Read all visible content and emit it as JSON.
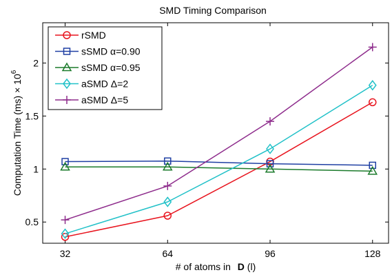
{
  "chart_data": {
    "type": "line",
    "title": "SMD Timing Comparison",
    "xlabel_parts": [
      "# of atoms in ",
      "D",
      " (l)"
    ],
    "ylabel": "Computation Time (ms) × 10",
    "ylabel_exp": "6",
    "x": [
      32,
      64,
      96,
      128
    ],
    "x_ticks": [
      "32",
      "64",
      "96",
      "128"
    ],
    "y_ticks": [
      "0.5",
      "1",
      "1.5",
      "2"
    ],
    "y_tick_values": [
      0.5,
      1,
      1.5,
      2
    ],
    "xlim": [
      25,
      133
    ],
    "ylim": [
      0.3,
      2.38
    ],
    "legend_position": "top-left",
    "series": [
      {
        "name": "rSMD",
        "color": "#e8141e",
        "marker": "circle",
        "values": [
          0.36,
          0.56,
          1.07,
          1.63
        ]
      },
      {
        "name": "sSMD α=0.90",
        "color": "#1f3fa3",
        "marker": "square",
        "values": [
          1.07,
          1.075,
          1.05,
          1.035
        ]
      },
      {
        "name": "sSMD α=0.95",
        "color": "#1a7a2a",
        "marker": "triangle",
        "values": [
          1.02,
          1.02,
          1.0,
          0.98
        ]
      },
      {
        "name": "aSMD Δ=2",
        "color": "#21c1c8",
        "marker": "diamond",
        "values": [
          0.39,
          0.69,
          1.19,
          1.79
        ]
      },
      {
        "name": "aSMD Δ=5",
        "color": "#8e2c8c",
        "marker": "plus",
        "values": [
          0.52,
          0.84,
          1.45,
          2.15
        ]
      }
    ]
  }
}
